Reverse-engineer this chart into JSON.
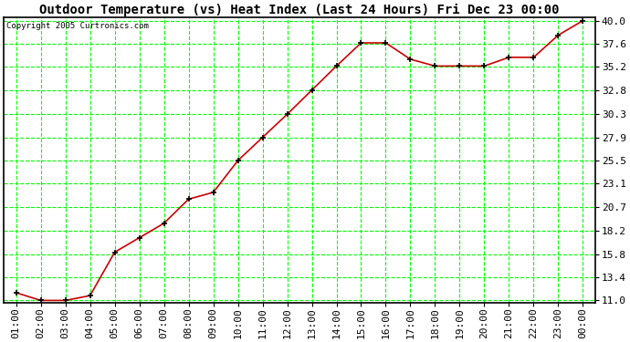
{
  "title": "Outdoor Temperature (vs) Heat Index (Last 24 Hours) Fri Dec 23 00:00",
  "copyright": "Copyright 2005 Curtronics.com",
  "x_labels": [
    "01:00",
    "02:00",
    "03:00",
    "04:00",
    "05:00",
    "06:00",
    "07:00",
    "08:00",
    "09:00",
    "10:00",
    "11:00",
    "12:00",
    "13:00",
    "14:00",
    "15:00",
    "16:00",
    "17:00",
    "18:00",
    "19:00",
    "20:00",
    "21:00",
    "22:00",
    "23:00",
    "00:00"
  ],
  "y_ticks": [
    11.0,
    13.4,
    15.8,
    18.2,
    20.7,
    23.1,
    25.5,
    27.9,
    30.3,
    32.8,
    35.2,
    37.6,
    40.0
  ],
  "y_min": 11.0,
  "y_max": 40.0,
  "temperatures": [
    11.8,
    11.0,
    11.0,
    11.5,
    16.0,
    17.5,
    19.0,
    21.5,
    22.2,
    25.5,
    27.9,
    30.3,
    32.8,
    35.3,
    37.7,
    37.7,
    36.0,
    35.3,
    35.3,
    35.3,
    36.2,
    36.2,
    38.5,
    40.0
  ],
  "line_color": "#cc0000",
  "marker_color": "#000000",
  "grid_color": "#00ff00",
  "plot_bg_color": "#ffffff",
  "fig_bg_color": "#ffffff",
  "border_color": "#000000",
  "title_fontsize": 10,
  "tick_fontsize": 8
}
